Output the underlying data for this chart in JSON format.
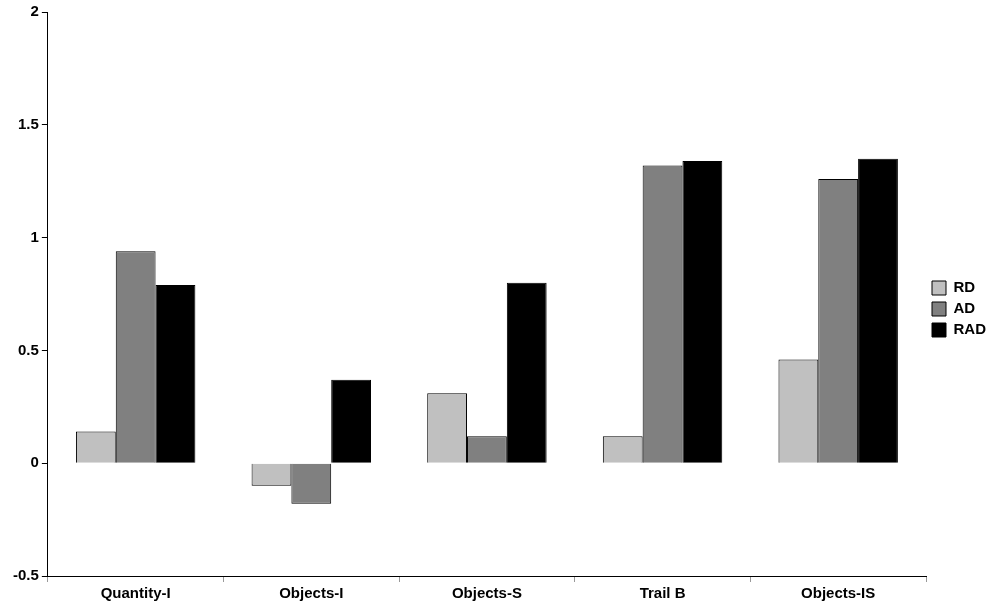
{
  "chart_data": {
    "type": "bar",
    "categories": [
      "Quantity-I",
      "Objects-I",
      "Objects-S",
      "Trail B",
      "Objects-IS"
    ],
    "series": [
      {
        "name": "RD",
        "color": "#c0c0c0",
        "values": [
          0.14,
          -0.1,
          0.31,
          0.12,
          0.46
        ]
      },
      {
        "name": "AD",
        "color": "#808080",
        "values": [
          0.94,
          -0.18,
          0.12,
          1.32,
          1.26
        ]
      },
      {
        "name": "RAD",
        "color": "#000000",
        "values": [
          0.79,
          0.37,
          0.8,
          1.34,
          1.35
        ]
      }
    ],
    "ylim": [
      -0.5,
      2
    ],
    "yticks": [
      -0.5,
      0,
      0.5,
      1,
      1.5,
      2
    ],
    "grid": false,
    "legend": "right"
  }
}
